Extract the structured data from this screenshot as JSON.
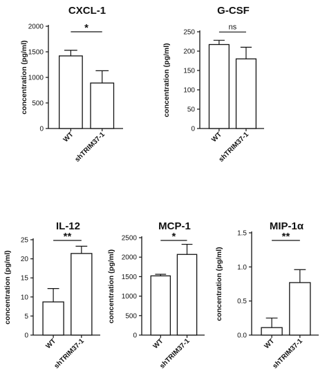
{
  "chart_data": [
    {
      "type": "bar",
      "title": "CXCL-1",
      "ylabel": "concentration (pg/ml)",
      "categories": [
        "WT",
        "shTRIM37-1"
      ],
      "values": [
        1420,
        890
      ],
      "errors": [
        110,
        240
      ],
      "ylim": [
        0,
        2000
      ],
      "yticks": [
        "0",
        "500",
        "1000",
        "1500",
        "2000"
      ],
      "significance": "*"
    },
    {
      "type": "bar",
      "title": "G-CSF",
      "ylabel": "concentration (pg/ml)",
      "categories": [
        "WT",
        "shTRIM37-1"
      ],
      "values": [
        217,
        180
      ],
      "errors": [
        11,
        30
      ],
      "ylim": [
        0,
        250
      ],
      "yticks": [
        "0",
        "50",
        "100",
        "150",
        "200",
        "250"
      ],
      "significance": "ns"
    },
    {
      "type": "bar",
      "title": "IL-12",
      "ylabel": "concentration (pg/ml)",
      "categories": [
        "WT",
        "shTRIM37-1"
      ],
      "values": [
        8.7,
        21.4
      ],
      "errors": [
        3.5,
        1.9
      ],
      "ylim": [
        0,
        25
      ],
      "yticks": [
        "0",
        "5",
        "10",
        "15",
        "20",
        "25"
      ],
      "significance": "**"
    },
    {
      "type": "bar",
      "title": "MCP-1",
      "ylabel": "concentration (pg/ml)",
      "categories": [
        "WT",
        "shTRIM37-1"
      ],
      "values": [
        1520,
        2070
      ],
      "errors": [
        40,
        260
      ],
      "ylim": [
        0,
        2500
      ],
      "yticks": [
        "0",
        "500",
        "1000",
        "1500",
        "2000",
        "2500"
      ],
      "significance": "*"
    },
    {
      "type": "bar",
      "title": "MIP-1α",
      "ylabel": "concentration (pg/ml)",
      "categories": [
        "WT",
        "shTRIM37-1"
      ],
      "values": [
        0.11,
        0.77
      ],
      "errors": [
        0.14,
        0.19
      ],
      "ylim": [
        0,
        1.5
      ],
      "yticks": [
        "0.0",
        "0.5",
        "1.0",
        "1.5"
      ],
      "significance": "**"
    }
  ]
}
